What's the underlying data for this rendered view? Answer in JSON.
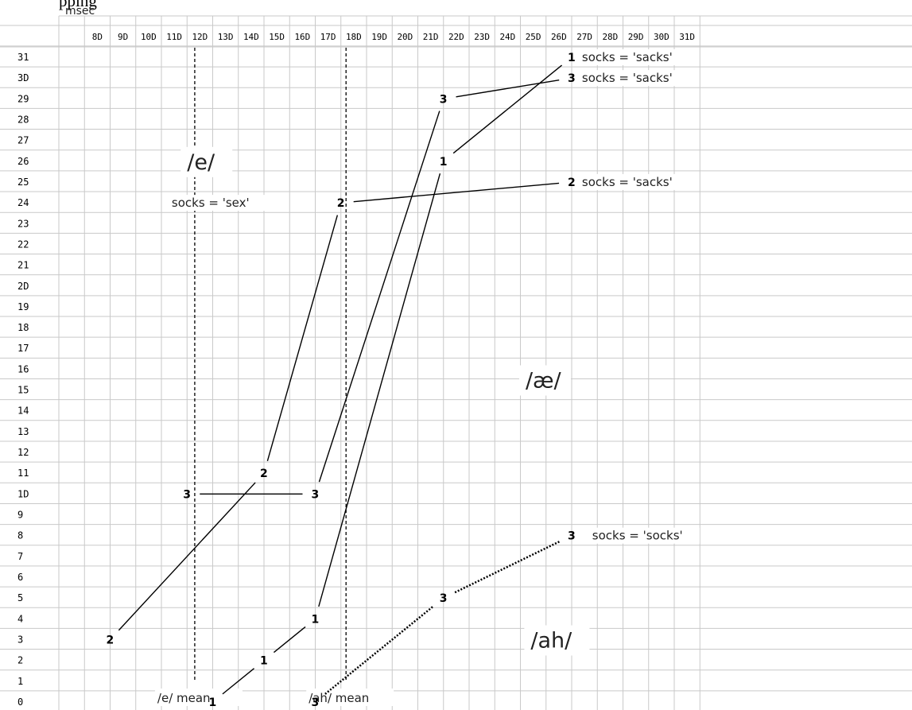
{
  "header_text": "pping",
  "chart_data": {
    "type": "line",
    "x_unit": "msec",
    "x_ticks": [
      "8D",
      "9D",
      "10D",
      "11D",
      "12D",
      "13D",
      "14D",
      "15D",
      "16D",
      "17D",
      "18D",
      "19D",
      "20D",
      "21D",
      "22D",
      "23D",
      "24D",
      "25D",
      "26D",
      "27D",
      "28D",
      "29D",
      "30D",
      "31D"
    ],
    "y_ticks": [
      "31",
      "3D",
      "29",
      "28",
      "27",
      "26",
      "25",
      "24",
      "23",
      "22",
      "21",
      "2D",
      "19",
      "18",
      "17",
      "16",
      "15",
      "14",
      "13",
      "12",
      "11",
      "1D",
      "9",
      "8",
      "7",
      "6",
      "5",
      "4",
      "3",
      "2",
      "1",
      "0"
    ],
    "xlim": [
      70,
      320
    ],
    "ylim": [
      0,
      31
    ],
    "grid": true,
    "series": [
      {
        "name": "1",
        "style": "solid",
        "points": [
          {
            "x": 130,
            "y": 0,
            "label": "1"
          },
          {
            "x": 150,
            "y": 2,
            "label": "1"
          },
          {
            "x": 170,
            "y": 4,
            "label": "1"
          },
          {
            "x": 220,
            "y": 26,
            "label": "1"
          },
          {
            "x": 270,
            "y": 31,
            "label": "1"
          }
        ]
      },
      {
        "name": "2",
        "style": "solid",
        "points": [
          {
            "x": 90,
            "y": 3,
            "label": "2"
          },
          {
            "x": 150,
            "y": 11,
            "label": "2"
          },
          {
            "x": 180,
            "y": 24,
            "label": "2"
          },
          {
            "x": 270,
            "y": 25,
            "label": "2"
          }
        ]
      },
      {
        "name": "3",
        "style": "solid",
        "points": [
          {
            "x": 120,
            "y": 10,
            "label": "3"
          },
          {
            "x": 170,
            "y": 10,
            "label": "3"
          },
          {
            "x": 220,
            "y": 29,
            "label": "3"
          },
          {
            "x": 270,
            "y": 30,
            "label": "3"
          }
        ]
      },
      {
        "name": "3 (socks)",
        "style": "dotted",
        "points": [
          {
            "x": 170,
            "y": 0,
            "label": "3"
          },
          {
            "x": 220,
            "y": 5,
            "label": "3"
          },
          {
            "x": 270,
            "y": 8,
            "label": "3"
          }
        ]
      }
    ],
    "mean_lines": [
      {
        "x": 123,
        "label": "/e/ mean"
      },
      {
        "x": 182,
        "label": "/ah/ mean"
      }
    ],
    "annotations": [
      {
        "text": "socks = 'sacks'",
        "x": 274,
        "y": 31
      },
      {
        "text": "socks = 'sacks'",
        "x": 274,
        "y": 30
      },
      {
        "text": "socks = 'sacks'",
        "x": 274,
        "y": 25
      },
      {
        "text": "socks = 'sex'",
        "x": 114,
        "y": 24
      },
      {
        "text": "socks = 'socks'",
        "x": 278,
        "y": 8
      }
    ],
    "region_labels": [
      {
        "text": "/e/",
        "x": 120,
        "y": 26
      },
      {
        "text": "/æ/",
        "x": 252,
        "y": 15.5
      },
      {
        "text": "/ah/",
        "x": 254,
        "y": 3
      }
    ]
  }
}
